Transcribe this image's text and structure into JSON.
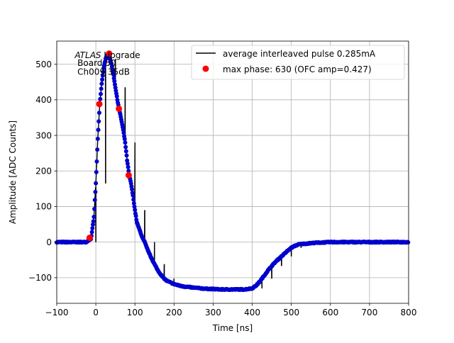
{
  "chart_data": {
    "type": "line",
    "xlabel": "Time [ns]",
    "ylabel": "Amplitude [ADC Counts]",
    "xlim": [
      -100,
      800
    ],
    "ylim": [
      -172,
      565
    ],
    "xticks": [
      -100,
      0,
      100,
      200,
      300,
      400,
      500,
      600,
      700,
      800
    ],
    "yticks": [
      -100,
      0,
      100,
      200,
      300,
      400,
      500
    ],
    "grid": true,
    "legend_position": "top-right",
    "annotation": {
      "italic": "ATLAS",
      "line1_rest": " Upgrade",
      "line2": " Board 50",
      "line3": " Ch009 35dB"
    },
    "series": [
      {
        "name": "average interleaved pulse 0.285mA",
        "kind": "line",
        "color": "#000000",
        "samples_per_bunch": 40,
        "sample_spacing_ns": 0.625,
        "envelope": [
          [
            -100,
            0
          ],
          [
            -25,
            0
          ],
          [
            -12,
            10
          ],
          [
            -5,
            70
          ],
          [
            0,
            165
          ],
          [
            5,
            290
          ],
          [
            10,
            388
          ],
          [
            15,
            445
          ],
          [
            20,
            490
          ],
          [
            25,
            515
          ],
          [
            30,
            527
          ],
          [
            35,
            520
          ],
          [
            40,
            500
          ],
          [
            45,
            470
          ],
          [
            50,
            435
          ],
          [
            55,
            400
          ],
          [
            60,
            372
          ],
          [
            65,
            345
          ],
          [
            70,
            315
          ],
          [
            75,
            280
          ],
          [
            80,
            230
          ],
          [
            85,
            190
          ],
          [
            90,
            165
          ],
          [
            95,
            130
          ],
          [
            100,
            90
          ],
          [
            105,
            55
          ],
          [
            110,
            40
          ],
          [
            115,
            25
          ],
          [
            120,
            10
          ],
          [
            125,
            0
          ],
          [
            130,
            -15
          ],
          [
            140,
            -40
          ],
          [
            150,
            -62
          ],
          [
            160,
            -82
          ],
          [
            170,
            -97
          ],
          [
            180,
            -108
          ],
          [
            200,
            -118
          ],
          [
            220,
            -124
          ],
          [
            250,
            -128
          ],
          [
            280,
            -131
          ],
          [
            300,
            -132
          ],
          [
            320,
            -133
          ],
          [
            350,
            -133
          ],
          [
            380,
            -133
          ],
          [
            400,
            -130
          ],
          [
            410,
            -122
          ],
          [
            420,
            -110
          ],
          [
            430,
            -95
          ],
          [
            440,
            -80
          ],
          [
            450,
            -67
          ],
          [
            460,
            -55
          ],
          [
            470,
            -45
          ],
          [
            480,
            -35
          ],
          [
            490,
            -25
          ],
          [
            500,
            -16
          ],
          [
            510,
            -10
          ],
          [
            520,
            -6
          ],
          [
            540,
            -4
          ],
          [
            560,
            -2
          ],
          [
            600,
            0
          ],
          [
            800,
            0
          ]
        ],
        "baseline_noise_adc": 2.5
      },
      {
        "name": "max phase: 630 (OFC amp=0.427)",
        "kind": "scatter",
        "color": "#ff0000",
        "points": [
          {
            "x": -16,
            "y": 12
          },
          {
            "x": 9,
            "y": 388
          },
          {
            "x": 34,
            "y": 530
          },
          {
            "x": 59,
            "y": 375
          },
          {
            "x": 84,
            "y": 188
          }
        ]
      }
    ],
    "dots_color": "#0000cc"
  }
}
